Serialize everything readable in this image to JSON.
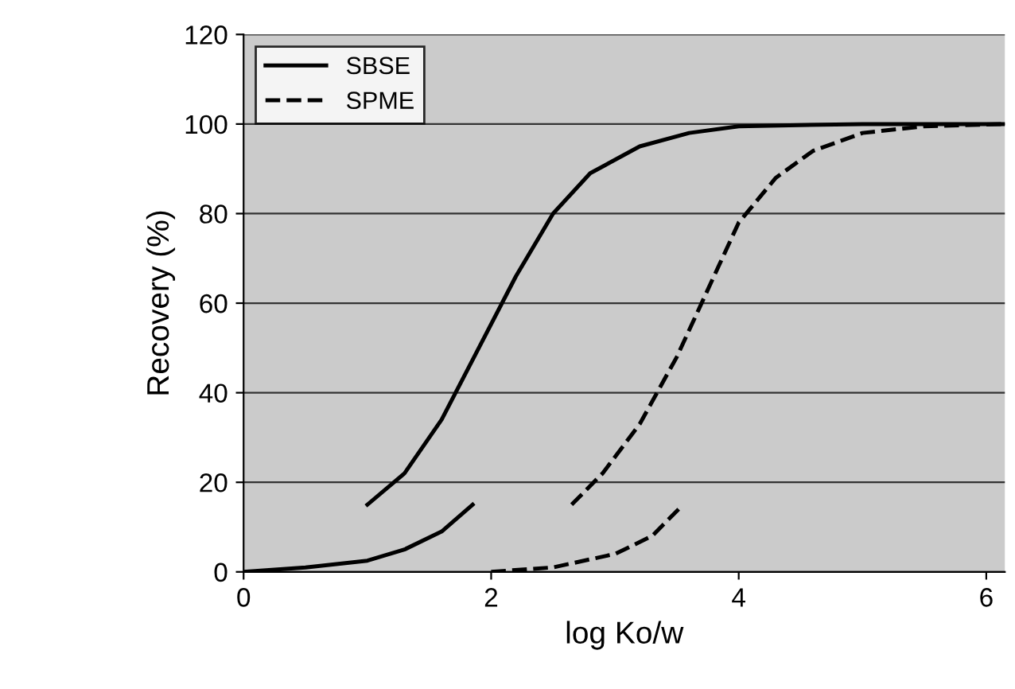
{
  "chart_data": {
    "type": "line",
    "xlabel": "log Ko/w",
    "ylabel": "Recovery (%)",
    "xlim": [
      0,
      6.15
    ],
    "xticks": [
      0,
      2,
      4,
      6
    ],
    "ylim": [
      0,
      120
    ],
    "yticks": [
      0,
      20,
      40,
      60,
      80,
      100,
      120
    ],
    "grid": "y",
    "legend": "top left",
    "series": [
      {
        "name": "SBSE",
        "color": "#000000",
        "line_style": "solid",
        "x": [
          0,
          0.5,
          1.0,
          1.3,
          1.6,
          1.85,
          null,
          1.0,
          1.3,
          1.6,
          1.9,
          2.2,
          2.5,
          2.8,
          3.2,
          3.6,
          4.0,
          5.0,
          6.15
        ],
        "values": [
          0,
          1,
          2.5,
          5,
          9,
          15,
          null,
          15,
          22,
          34,
          50,
          66,
          80,
          89,
          95,
          98,
          99.5,
          100,
          100
        ]
      },
      {
        "name": "SPME",
        "color": "#000000",
        "line_style": "dashed",
        "x": [
          2.0,
          2.5,
          3.0,
          3.3,
          3.55,
          null,
          2.65,
          2.9,
          3.2,
          3.5,
          3.8,
          4.0,
          4.3,
          4.6,
          5.0,
          5.5,
          6.15
        ],
        "values": [
          0,
          1,
          4,
          8,
          15,
          null,
          15,
          22,
          33,
          48,
          66,
          78,
          88,
          94,
          98,
          99.5,
          100
        ]
      }
    ]
  }
}
